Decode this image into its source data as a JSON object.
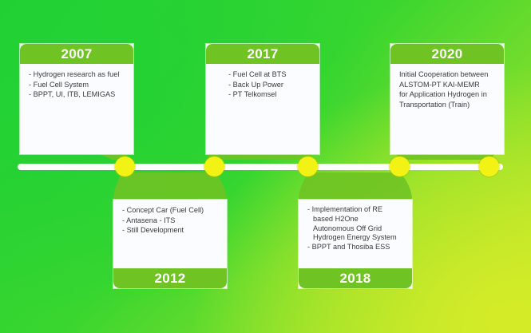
{
  "milestones": [
    {
      "year": "2007",
      "lines": [
        "- Hydrogen research as fuel",
        "- Fuel Cell System",
        "- BPPT, UI, ITB, LEMIGAS"
      ]
    },
    {
      "year": "2012",
      "lines": [
        "- Concept Car (Fuel Cell)",
        "- Antasena - ITS",
        "- Still Development"
      ]
    },
    {
      "year": "2017",
      "lines": [
        "- Fuel Cell at BTS",
        "- Back Up Power",
        "- PT Telkomsel"
      ]
    },
    {
      "year": "2018",
      "lines": [
        "- Implementation of RE",
        "based H2One",
        "Autonomous Off Grid",
        "Hydrogen Energy System",
        "- BPPT and Thosiba ESS"
      ]
    },
    {
      "year": "2020",
      "lines": [
        "Initial Cooperation between",
        "ALSTOM-PT KAI-MEMR",
        "for Application Hydrogen in",
        "Transportation (Train)"
      ]
    }
  ],
  "colors": {
    "accent": "#6fc323",
    "dot": "#f2f215",
    "line": "#ffffff"
  }
}
